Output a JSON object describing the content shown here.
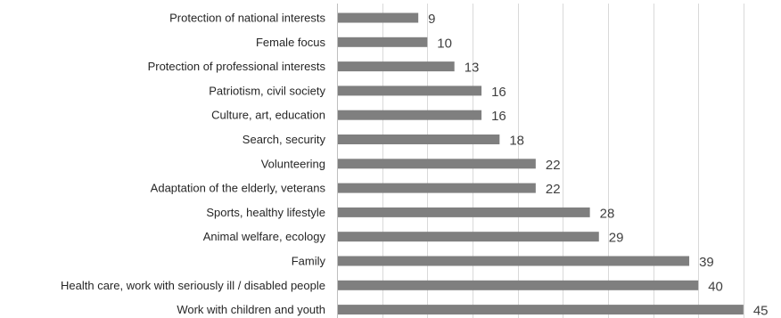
{
  "chart_data": {
    "type": "bar",
    "orientation": "horizontal",
    "categories": [
      "Protection of national interests",
      "Female focus",
      "Protection of professional interests",
      "Patriotism, civil society",
      "Culture, art, education",
      "Search, security",
      "Volunteering",
      "Adaptation of the elderly, veterans",
      "Sports, healthy lifestyle",
      "Animal welfare, ecology",
      "Family",
      "Health care, work with seriously ill / disabled people",
      "Work with children and youth"
    ],
    "values": [
      9,
      10,
      13,
      16,
      16,
      18,
      22,
      22,
      28,
      29,
      39,
      40,
      45
    ],
    "xlim": [
      0,
      45
    ],
    "grid": true,
    "legend": "none",
    "bar_color": "#7f7f7f",
    "grid_color": "#d9d9d9"
  }
}
